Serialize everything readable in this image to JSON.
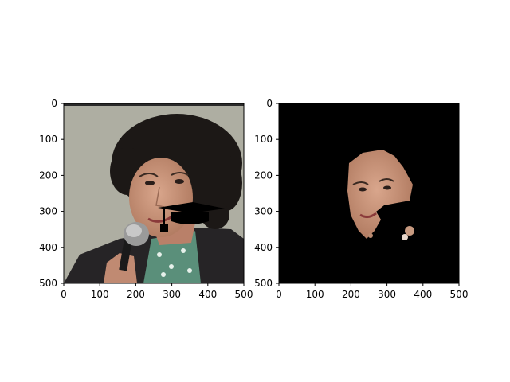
{
  "chart_data": [
    {
      "type": "image",
      "image_content": "photograph of a woman with curly dark hair speaking into a microphone, with a black graduation-cap overlay",
      "xlim": [
        0,
        500
      ],
      "ylim": [
        500,
        0
      ],
      "xticks": [
        0,
        100,
        200,
        300,
        400,
        500
      ],
      "yticks": [
        0,
        100,
        200,
        300,
        400,
        500
      ],
      "xlabel": "",
      "ylabel": "",
      "title": "",
      "grid": false
    },
    {
      "type": "image",
      "image_content": "segmentation mask: black background with only the face skin region visible",
      "xlim": [
        0,
        500
      ],
      "ylim": [
        500,
        0
      ],
      "xticks": [
        0,
        100,
        200,
        300,
        400,
        500
      ],
      "yticks": [
        0,
        100,
        200,
        300,
        400,
        500
      ],
      "xlabel": "",
      "ylabel": "",
      "title": "",
      "grid": false
    }
  ],
  "icons": {
    "overlay": "graduation-cap-icon",
    "microphone": "microphone-icon"
  },
  "colors": {
    "photo_background": "#aeaea2",
    "hair": "#1c1816",
    "skin": "#c49078",
    "jacket": "#262426",
    "mask_background": "#000000"
  }
}
